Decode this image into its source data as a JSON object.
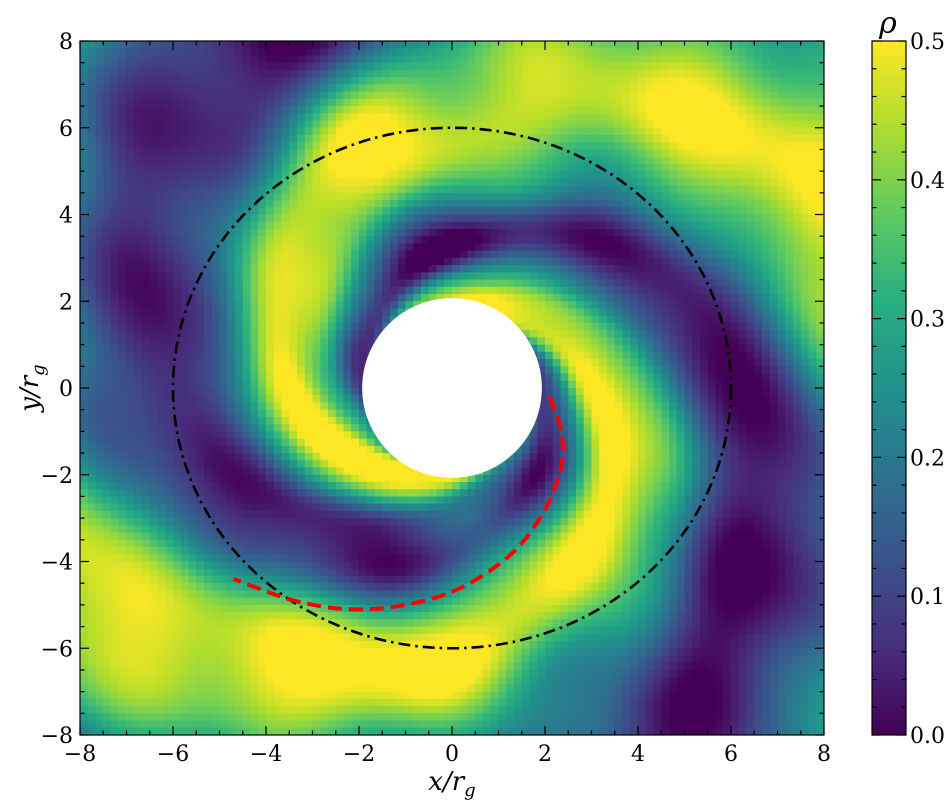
{
  "chart_data": {
    "type": "heatmap",
    "xlabel": "x/r",
    "xlabel_sub": "g",
    "ylabel": "y/r",
    "ylabel_sub": "g",
    "xlim": [
      -8,
      8
    ],
    "ylim": [
      -8,
      8
    ],
    "xticks": [
      -8,
      -6,
      -4,
      -2,
      0,
      2,
      4,
      6,
      8
    ],
    "yticks": [
      -8,
      -6,
      -4,
      -2,
      0,
      2,
      4,
      6,
      8
    ],
    "xtick_labels": [
      "−8",
      "−6",
      "−4",
      "−2",
      "0",
      "2",
      "4",
      "6",
      "8"
    ],
    "ytick_labels": [
      "−8",
      "−6",
      "−4",
      "−2",
      "0",
      "2",
      "4",
      "6",
      "8"
    ],
    "colormap": "viridis",
    "colorbar": {
      "title": "ρ",
      "range": [
        0.0,
        0.5
      ],
      "ticks": [
        0.0,
        0.1,
        0.2,
        0.3,
        0.4,
        0.5
      ],
      "tick_labels": [
        "0.0",
        "0.1",
        "0.2",
        "0.3",
        "0.4",
        "0.5"
      ],
      "placement": "right"
    },
    "field": "two-armed logarithmic spiral density pattern with saturated (yellow) arms, masked inner disk of radius 2",
    "masked_inner_radius": 2,
    "overlays": [
      {
        "kind": "circle",
        "center": [
          0,
          0
        ],
        "radius": 6,
        "style": "dash-dot",
        "color": "#000000"
      },
      {
        "kind": "curve",
        "style": "dashed",
        "color": "#ff0000",
        "points": [
          [
            2.1,
            -0.2
          ],
          [
            2.35,
            -1.0
          ],
          [
            2.35,
            -1.8
          ],
          [
            2.0,
            -2.8
          ],
          [
            1.3,
            -3.8
          ],
          [
            0.2,
            -4.6
          ],
          [
            -1.0,
            -5.0
          ],
          [
            -2.2,
            -5.1
          ],
          [
            -3.4,
            -4.9
          ],
          [
            -4.7,
            -4.4
          ]
        ]
      }
    ],
    "colors": {
      "mask": "#ffffff",
      "circle": "#000000",
      "curve": "#ff0000"
    }
  }
}
